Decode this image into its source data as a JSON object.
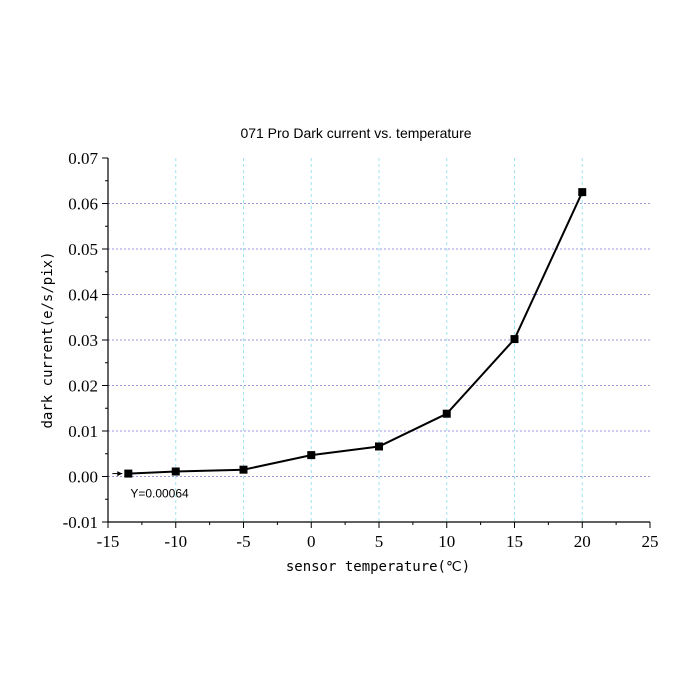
{
  "chart_data": {
    "type": "line",
    "title": "071 Pro Dark current vs. temperature",
    "xlabel": "sensor temperature(℃)",
    "ylabel": "dark current(e/s/pix)",
    "xlim": [
      -15,
      25
    ],
    "ylim": [
      -0.01,
      0.07
    ],
    "xticks": [
      -15,
      -10,
      -5,
      0,
      5,
      10,
      15,
      20,
      25
    ],
    "xtick_labels": [
      "-15",
      "-10",
      "-5",
      "0",
      "5",
      "10",
      "15",
      "20",
      "25"
    ],
    "yticks": [
      -0.01,
      0.0,
      0.01,
      0.02,
      0.03,
      0.04,
      0.05,
      0.06,
      0.07
    ],
    "ytick_labels": [
      "-0.01",
      "0.00",
      "0.01",
      "0.02",
      "0.03",
      "0.04",
      "0.05",
      "0.06",
      "0.07"
    ],
    "grid": true,
    "series": [
      {
        "x": [
          -13.5,
          -10,
          -5,
          0,
          5,
          10,
          15,
          20
        ],
        "y": [
          0.00064,
          0.0011,
          0.0015,
          0.0047,
          0.0066,
          0.0138,
          0.0302,
          0.0625
        ],
        "color": "#000000",
        "marker": "square"
      }
    ],
    "annotations": [
      {
        "text": "Y=0.00064",
        "x": -13.5,
        "y": 0.00064
      }
    ]
  }
}
